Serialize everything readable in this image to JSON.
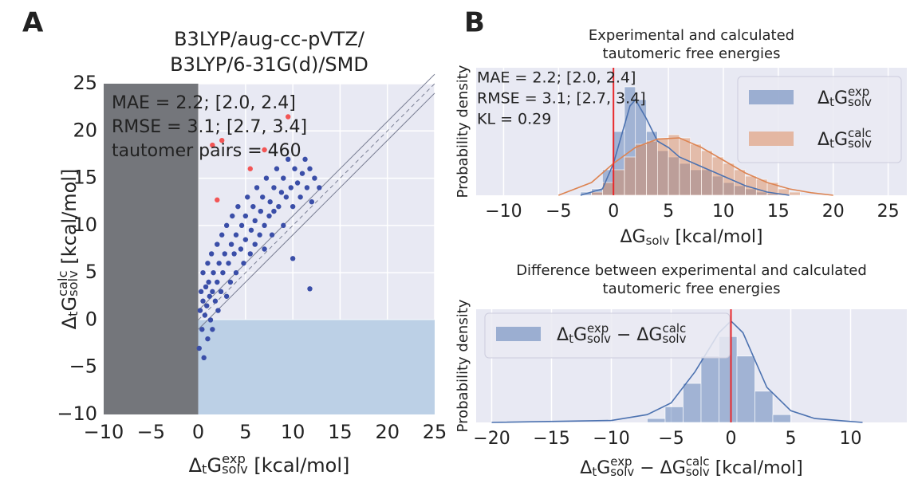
{
  "chart_data": [
    {
      "type": "scatter",
      "panel_label": "A",
      "title": [
        "B3LYP/aug-cc-pVTZ/",
        "B3LYP/6-31G(d)/SMD"
      ],
      "xlabel": [
        {
          "t": "Δ"
        },
        {
          "t": "t",
          "s": "sub"
        },
        {
          "t": "G"
        },
        {
          "t": "exp",
          "s": "sup"
        },
        {
          "t": "solv",
          "s": "sub"
        },
        {
          "t": " [kcal/mol]"
        }
      ],
      "ylabel": [
        {
          "t": "Δ"
        },
        {
          "t": "t",
          "s": "sub"
        },
        {
          "t": "G"
        },
        {
          "t": "calc",
          "s": "sup"
        },
        {
          "t": "solv",
          "s": "sub"
        },
        {
          "t": " [kcal/mol]"
        }
      ],
      "annotations": [
        "MAE = 2.2; [2.0, 2.4]",
        "RMSE = 3.1; [2.7, 3.4]",
        "tautomer pairs = 460"
      ],
      "xlim": [
        -10,
        25
      ],
      "ylim": [
        -10,
        25
      ],
      "xticks": [
        {
          "value": -10,
          "label": "−10"
        },
        {
          "value": -5,
          "label": "−5"
        },
        0,
        5,
        10,
        15,
        20,
        25
      ],
      "yticks": [
        {
          "value": -10,
          "label": "−10"
        },
        {
          "value": -5,
          "label": "−5"
        },
        0,
        5,
        10,
        15,
        20,
        25
      ],
      "grid": true,
      "shaded": [
        {
          "x": [
            -10,
            0
          ],
          "y": [
            -10,
            25
          ],
          "color": "#74767b"
        },
        {
          "x": [
            0,
            25
          ],
          "y": [
            -10,
            0
          ],
          "color": "#bcd0e6"
        }
      ],
      "diagonal_offsets": [
        -1,
        0,
        1
      ],
      "series": [
        {
          "color": "#3a4ea8",
          "x": [
            0.1,
            0.2,
            0.3,
            0.4,
            0.5,
            0.5,
            0.6,
            0.7,
            0.8,
            0.9,
            1,
            1,
            1.1,
            1.2,
            1.3,
            1.4,
            1.5,
            1.5,
            1.6,
            1.8,
            2,
            2,
            2.1,
            2.2,
            2.4,
            2.5,
            2.6,
            2.8,
            3,
            3,
            3.2,
            3.4,
            3.5,
            3.6,
            3.8,
            4,
            4,
            4.2,
            4.5,
            4.6,
            4.8,
            5,
            5,
            5.2,
            5.5,
            5.6,
            5.8,
            6,
            6,
            6.2,
            6.5,
            6.6,
            6.8,
            7,
            7,
            7.2,
            7.5,
            7.6,
            7.8,
            8,
            8,
            8.3,
            8.5,
            8.8,
            9,
            9,
            9.3,
            9.5,
            9.8,
            10,
            10.2,
            10.5,
            10.8,
            11,
            11.3,
            11.5,
            11.8,
            12,
            12.3,
            12.8,
            11.8,
            10
          ],
          "y": [
            -3,
            1,
            3,
            -1,
            5,
            2,
            -4,
            0.5,
            3.5,
            1.5,
            6,
            -2,
            4,
            2.5,
            0,
            7,
            3,
            -1,
            5,
            2,
            8,
            4,
            1,
            6,
            3,
            9,
            5,
            7,
            2.5,
            10,
            6,
            4,
            8,
            11,
            7,
            5,
            9,
            12,
            7.5,
            10,
            6,
            8.5,
            11,
            13,
            7,
            9.5,
            12,
            8,
            10.5,
            14,
            9,
            11.5,
            13,
            7.5,
            10,
            15,
            11,
            12.5,
            9,
            14,
            11.5,
            16,
            12,
            13.5,
            10,
            15,
            13,
            17,
            14,
            12,
            16,
            14.5,
            13,
            15.5,
            17,
            14,
            16,
            12.5,
            15,
            14,
            3.3,
            6.5
          ]
        },
        {
          "color": "#f25555",
          "x": [
            1.5,
            2.5,
            9.5,
            5.5,
            2,
            7
          ],
          "y": [
            18.5,
            19,
            21.5,
            16,
            12.7,
            18
          ]
        }
      ]
    },
    {
      "type": "histogram",
      "panel_label": "B",
      "title": [
        "Experimental and calculated",
        "tautomeric free energies"
      ],
      "xlabel": [
        {
          "t": "ΔG"
        },
        {
          "t": "solv",
          "s": "sub"
        },
        {
          "t": " [kcal/mol]"
        }
      ],
      "ylabel": [
        {
          "t": "Probability density"
        }
      ],
      "annotations": [
        "MAE = 2.2; [2.0, 2.4]",
        "RMSE = 3.1; [2.7, 3.4]",
        "KL = 0.29"
      ],
      "xlim": [
        -12.5,
        26.7
      ],
      "ylim": [
        0,
        0.2
      ],
      "xticks": [
        {
          "value": -10,
          "label": "−10"
        },
        {
          "value": -5,
          "label": "−5"
        },
        0,
        5,
        10,
        15,
        20,
        25
      ],
      "grid": true,
      "vline": 0,
      "vline_color": "#e8282b",
      "legend": "upper right",
      "series": [
        {
          "name": [
            {
              "t": "Δ"
            },
            {
              "t": "t",
              "s": "sub"
            },
            {
              "t": "G"
            },
            {
              "t": "exp",
              "s": "sup"
            },
            {
              "t": "solv",
              "s": "sub"
            }
          ],
          "color": "#4c72b0",
          "bins": [
            -3,
            -2,
            -1,
            0,
            1,
            2,
            3,
            4,
            5,
            6,
            7,
            8,
            9,
            10,
            11,
            12,
            13,
            14,
            15
          ],
          "values": [
            0.005,
            0.01,
            0.04,
            0.1,
            0.17,
            0.15,
            0.1,
            0.07,
            0.06,
            0.05,
            0.04,
            0.04,
            0.03,
            0.02,
            0.015,
            0.01,
            0.005,
            0.003
          ],
          "kde": {
            "x": [
              -3,
              -1,
              0,
              1,
              1.5,
              2,
              3,
              4,
              5,
              6,
              8,
              10,
              12,
              14,
              16
            ],
            "y": [
              0,
              0.01,
              0.05,
              0.11,
              0.14,
              0.15,
              0.12,
              0.085,
              0.075,
              0.06,
              0.045,
              0.03,
              0.015,
              0.005,
              0
            ]
          }
        },
        {
          "name": [
            {
              "t": "Δ"
            },
            {
              "t": "t",
              "s": "sub"
            },
            {
              "t": "G"
            },
            {
              "t": "calc",
              "s": "sup"
            },
            {
              "t": "solv",
              "s": "sub"
            }
          ],
          "color": "#dd8452",
          "bins": [
            -2,
            -1,
            0,
            1,
            2,
            3,
            4,
            5,
            6,
            7,
            8,
            9,
            10,
            11,
            12,
            13,
            14,
            15,
            16,
            17
          ],
          "values": [
            0.005,
            0.02,
            0.04,
            0.06,
            0.08,
            0.085,
            0.09,
            0.095,
            0.09,
            0.08,
            0.07,
            0.06,
            0.05,
            0.04,
            0.03,
            0.025,
            0.02,
            0.01,
            0.005
          ],
          "kde": {
            "x": [
              -5,
              -2,
              0,
              2,
              4,
              6,
              8,
              10,
              12,
              14,
              16,
              18,
              20
            ],
            "y": [
              0,
              0.02,
              0.05,
              0.075,
              0.088,
              0.09,
              0.075,
              0.055,
              0.035,
              0.02,
              0.01,
              0.004,
              0
            ]
          }
        }
      ]
    },
    {
      "type": "histogram",
      "title": [
        "Difference between experimental and calculated",
        "tautomeric free energies"
      ],
      "xlabel": [
        {
          "t": "Δ"
        },
        {
          "t": "t",
          "s": "sub"
        },
        {
          "t": "G"
        },
        {
          "t": "exp",
          "s": "sup"
        },
        {
          "t": "solv",
          "s": "sub"
        },
        {
          "t": " − ΔG"
        },
        {
          "t": "calc",
          "s": "sup"
        },
        {
          "t": "solv",
          "s": "sub"
        },
        {
          "t": " [kcal/mol]"
        }
      ],
      "ylabel": [
        {
          "t": "Probability density"
        }
      ],
      "xlim": [
        -21.3,
        14.7
      ],
      "ylim": [
        0,
        0.29
      ],
      "xticks": [
        {
          "value": -20,
          "label": "−20"
        },
        {
          "value": -15,
          "label": "−15"
        },
        {
          "value": -10,
          "label": "−10"
        },
        {
          "value": -5,
          "label": "−5"
        },
        0,
        5,
        10
      ],
      "grid": true,
      "vline": 0,
      "vline_color": "#e8282b",
      "legend": "upper left",
      "series": [
        {
          "name": [
            {
              "t": "Δ"
            },
            {
              "t": "t",
              "s": "sub"
            },
            {
              "t": "G"
            },
            {
              "t": "exp",
              "s": "sup"
            },
            {
              "t": "solv",
              "s": "sub"
            },
            {
              "t": " − ΔG"
            },
            {
              "t": "calc",
              "s": "sup"
            },
            {
              "t": "solv",
              "s": "sub"
            }
          ],
          "color": "#4c72b0",
          "bins": [
            -7,
            -5.5,
            -4,
            -2.5,
            -1,
            0.5,
            2,
            3.5,
            5
          ],
          "values": [
            0.01,
            0.04,
            0.1,
            0.17,
            0.22,
            0.17,
            0.08,
            0.02
          ],
          "kde": {
            "x": [
              -20,
              -10,
              -7,
              -5,
              -3,
              -1,
              0,
              1,
              2,
              3,
              5,
              7,
              9,
              11
            ],
            "y": [
              0,
              0.005,
              0.02,
              0.05,
              0.13,
              0.23,
              0.26,
              0.23,
              0.16,
              0.09,
              0.03,
              0.01,
              0.005,
              0
            ]
          }
        }
      ]
    }
  ]
}
